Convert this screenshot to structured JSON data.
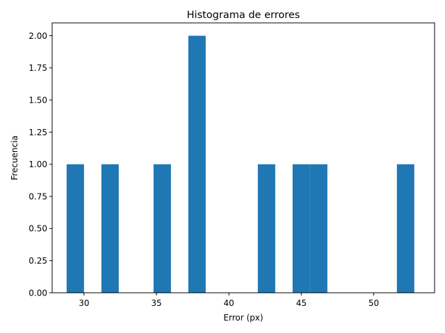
{
  "chart_data": {
    "type": "bar",
    "title": "Histograma de errores",
    "xlabel": "Error (px)",
    "ylabel": "Frecuencia",
    "xlim": [
      27.8,
      54.2
    ],
    "ylim": [
      0,
      2.1
    ],
    "x_ticks": [
      30,
      35,
      40,
      45,
      50
    ],
    "y_ticks": [
      "0.00",
      "0.25",
      "0.50",
      "0.75",
      "1.00",
      "1.25",
      "1.50",
      "1.75",
      "2.00"
    ],
    "bin_width": 1.2,
    "bins": [
      {
        "x_start": 28.8,
        "value": 1
      },
      {
        "x_start": 31.2,
        "value": 1
      },
      {
        "x_start": 34.8,
        "value": 1
      },
      {
        "x_start": 37.2,
        "value": 2
      },
      {
        "x_start": 42.0,
        "value": 1
      },
      {
        "x_start": 44.4,
        "value": 1
      },
      {
        "x_start": 45.6,
        "value": 1
      },
      {
        "x_start": 51.6,
        "value": 1
      }
    ],
    "grid": false,
    "legend": "none",
    "bar_color": "#1f77b4"
  }
}
